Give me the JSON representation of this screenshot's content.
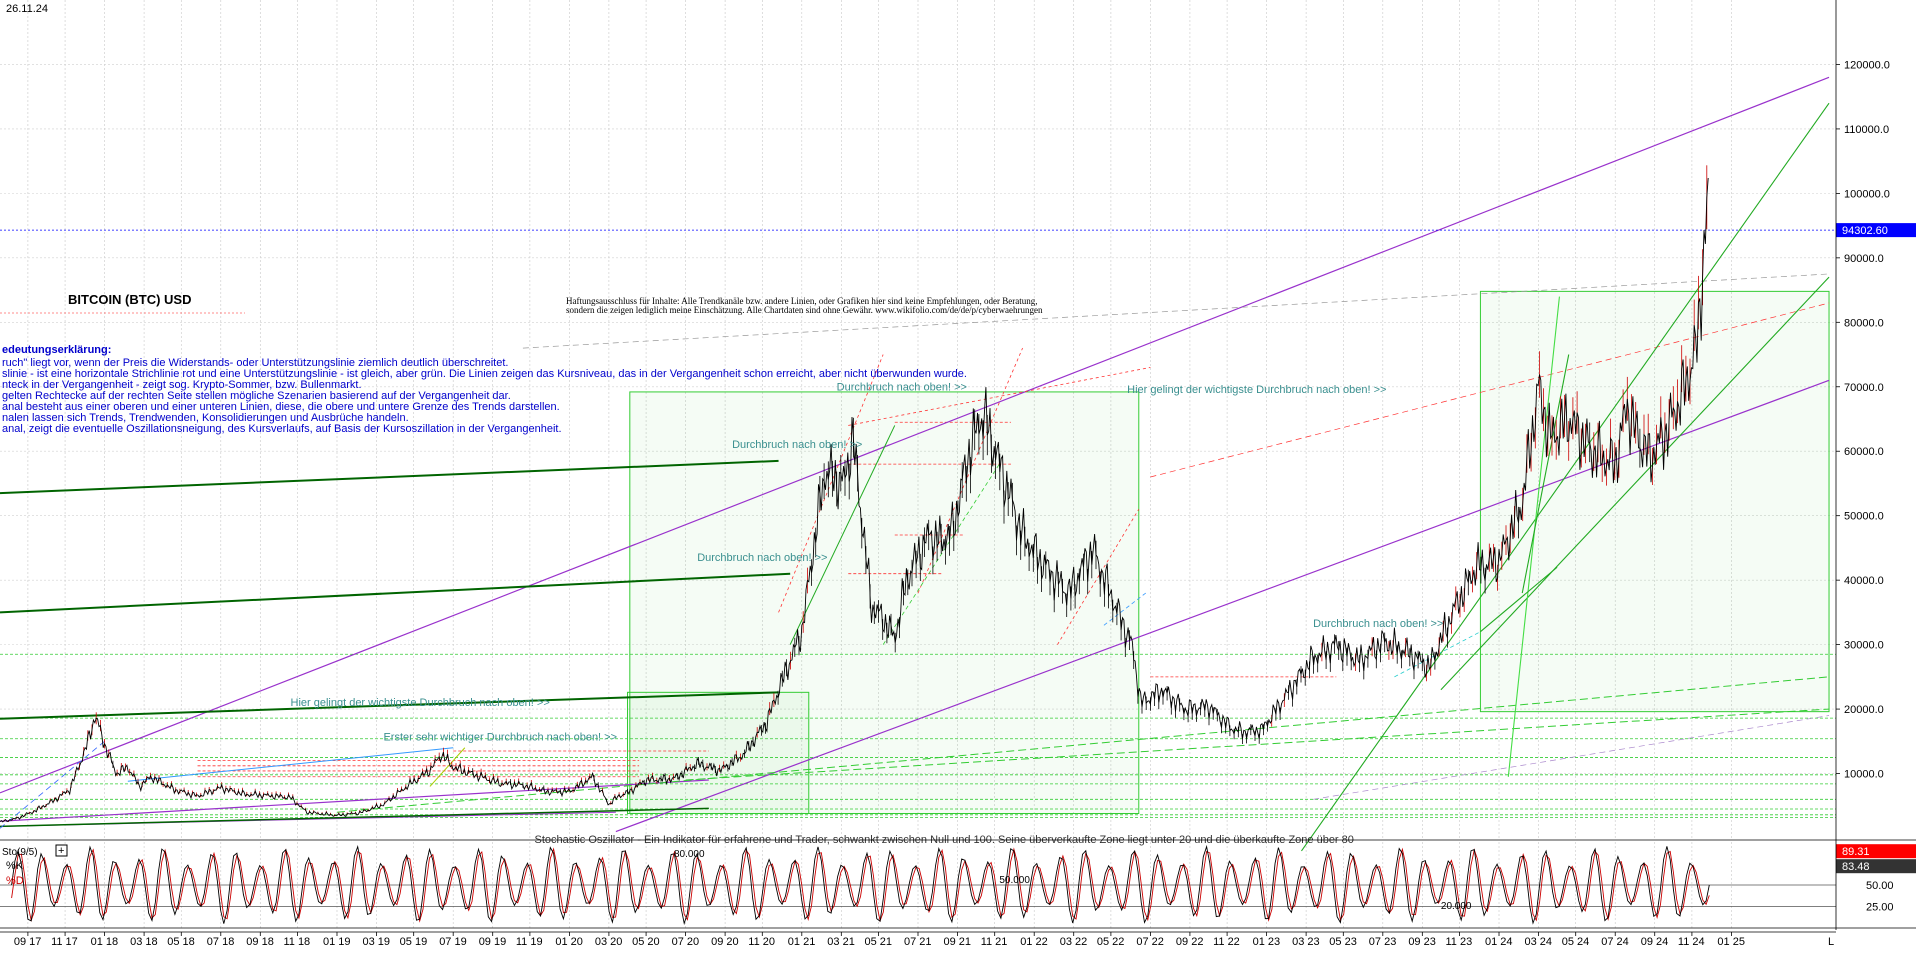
{
  "chart_data": {
    "type": "line",
    "date_label": "26.11.24",
    "title": "BITCOIN (BTC) USD",
    "disclaimer": [
      "Haftungsausschluss für Inhalte: Alle Trendkanäle bzw. andere Linien, oder Grafiken hier sind keine Empfehlungen, oder Beratung,",
      "sondern die zeigen lediglich meine  Einschätzung. Alle Chartdaten sind ohne Gewähr.  www.wikifolio.com/de/de/p/cyberwaehrungen"
    ],
    "legend_heading": "edeutungserklärung:",
    "legend_lines": [
      "ruch\" liegt vor, wenn der Preis die Widerstands- oder Unterstützungslinie ziemlich deutlich überschreitet.",
      "slinie - ist eine horizontale Strichlinie rot und eine Unterstützungslinie - ist gleich, aber grün. Die Linien zeigen das Kursniveau, das in der Vergangenheit schon erreicht, aber nicht überwunden wurde.",
      "nteck in der Vergangenheit - zeigt sog. Krypto-Sommer, bzw. Bullenmarkt.",
      "gelten Rechtecke auf der rechten Seite stellen mögliche Szenarien basierend auf der Vergangenheit dar.",
      "anal besteht aus einer oberen und einer unteren Linien, diese, die obere und untere Grenze des Trends darstellen.",
      "nalen lassen sich Trends, Trendwenden, Konsolidierungen und Ausbrüche handeln.",
      "anal, zeigt die eventuelle Oszillationsneigung, des Kursverlaufs, auf Basis der Kursoszillation in der Vergangenheit."
    ],
    "annotations": [
      {
        "text": "Durchbruch nach oben! >>",
        "x_date": 2021.15,
        "y_value": 69400
      },
      {
        "text": "Durchbruch nach oben! >>",
        "x_date": 2020.7,
        "y_value": 60500
      },
      {
        "text": "Durchbruch nach oben! >>",
        "x_date": 2020.55,
        "y_value": 43000
      },
      {
        "text": "Hier gelingt der wichtigste Durchbruch nach oben! >>",
        "x_date": 2022.4,
        "y_value": 69000
      },
      {
        "text": "Durchbruch nach oben! >>",
        "x_date": 2023.2,
        "y_value": 32700
      },
      {
        "text": "Hier gelingt der wichtigste Durchbruch nach oben! >>",
        "x_date": 2018.8,
        "y_value": 20500
      },
      {
        "text": "Erster sehr wichtiger Durchbruch nach oben! >>",
        "x_date": 2019.2,
        "y_value": 15100
      },
      {
        "text": "Stochastic Oszillator - Ein Indikator für erfahrene und Trader, schwankt zwischen Null und 100. Seine überverkaufte Zone liegt unter 20 und die überkaufte Zone über 80",
        "x_date": 2019.85,
        "y_value": -200
      }
    ],
    "y_axis": {
      "range": [
        0,
        130000
      ],
      "ticks": [
        10000,
        20000,
        30000,
        40000,
        50000,
        60000,
        70000,
        80000,
        90000,
        100000,
        110000,
        120000
      ],
      "tick_labels": [
        "10000.0",
        "20000.0",
        "30000.0",
        "40000.0",
        "50000.0",
        "60000.0",
        "70000.0",
        "80000.0",
        "90000.0",
        "100000.0",
        "110000.0",
        "120000.0"
      ]
    },
    "current_price": {
      "value": 94302.6,
      "label": "94302.60"
    },
    "x_axis": {
      "range": [
        2017.55,
        2025.45
      ],
      "tick_labels": [
        "09 17",
        "11 17",
        "01 18",
        "03 18",
        "05 18",
        "07 18",
        "09 18",
        "11 18",
        "01 19",
        "03 19",
        "05 19",
        "07 19",
        "09 19",
        "11 19",
        "01 20",
        "03 20",
        "05 20",
        "07 20",
        "09 20",
        "11 20",
        "01 21",
        "03 21",
        "05 21",
        "07 21",
        "09 21",
        "11 21",
        "01 22",
        "03 22",
        "05 22",
        "07 22",
        "09 22",
        "11 22",
        "01 23",
        "03 23",
        "05 23",
        "07 23",
        "09 23",
        "11 23",
        "01 24",
        "03 24",
        "05 24",
        "07 24",
        "09 24",
        "11 24",
        "01 25"
      ],
      "tick_dates": [
        2017.67,
        2017.83,
        2018.0,
        2018.17,
        2018.33,
        2018.5,
        2018.67,
        2018.83,
        2019.0,
        2019.17,
        2019.33,
        2019.5,
        2019.67,
        2019.83,
        2020.0,
        2020.17,
        2020.33,
        2020.5,
        2020.67,
        2020.83,
        2021.0,
        2021.17,
        2021.33,
        2021.5,
        2021.67,
        2021.83,
        2022.0,
        2022.17,
        2022.33,
        2022.5,
        2022.67,
        2022.83,
        2023.0,
        2023.17,
        2023.33,
        2023.5,
        2023.67,
        2023.83,
        2024.0,
        2024.17,
        2024.33,
        2024.5,
        2024.67,
        2024.83,
        2025.0
      ],
      "end_marker": "L"
    },
    "price_series": {
      "name": "BTC USD",
      "x": [
        2017.55,
        2017.62,
        2017.7,
        2017.78,
        2017.85,
        2017.92,
        2017.96,
        2018.0,
        2018.05,
        2018.1,
        2018.15,
        2018.2,
        2018.3,
        2018.4,
        2018.5,
        2018.6,
        2018.7,
        2018.8,
        2018.87,
        2018.92,
        2019.0,
        2019.1,
        2019.2,
        2019.3,
        2019.4,
        2019.45,
        2019.5,
        2019.55,
        2019.62,
        2019.7,
        2019.8,
        2019.9,
        2020.0,
        2020.1,
        2020.17,
        2020.21,
        2020.25,
        2020.33,
        2020.45,
        2020.55,
        2020.65,
        2020.75,
        2020.85,
        2020.9,
        2021.0,
        2021.05,
        2021.1,
        2021.18,
        2021.22,
        2021.3,
        2021.35,
        2021.4,
        2021.45,
        2021.5,
        2021.55,
        2021.6,
        2021.65,
        2021.72,
        2021.78,
        2021.86,
        2021.95,
        2022.05,
        2022.15,
        2022.25,
        2022.35,
        2022.42,
        2022.46,
        2022.55,
        2022.65,
        2022.75,
        2022.85,
        2022.9,
        2022.98,
        2023.1,
        2023.2,
        2023.3,
        2023.4,
        2023.5,
        2023.6,
        2023.7,
        2023.8,
        2023.9,
        2024.0,
        2024.1,
        2024.17,
        2024.22,
        2024.3,
        2024.4,
        2024.5,
        2024.55,
        2024.6,
        2024.65,
        2024.72,
        2024.8,
        2024.85,
        2024.88,
        2024.9,
        2024.905
      ],
      "values": [
        2500,
        3000,
        4200,
        5800,
        7500,
        14000,
        19000,
        14500,
        10000,
        11000,
        8000,
        9500,
        7500,
        6500,
        7800,
        6800,
        6600,
        6300,
        4000,
        3800,
        3500,
        3900,
        5200,
        8000,
        10500,
        13000,
        11000,
        10300,
        9500,
        8500,
        8200,
        7200,
        7200,
        9500,
        5200,
        6500,
        7000,
        9000,
        9200,
        11500,
        10500,
        13000,
        18000,
        23000,
        32000,
        45000,
        57000,
        55000,
        62000,
        36000,
        34000,
        31000,
        40000,
        44000,
        47000,
        46000,
        48000,
        60000,
        66000,
        57000,
        47000,
        42000,
        38000,
        45000,
        36000,
        30000,
        21000,
        23000,
        20000,
        20500,
        17000,
        16500,
        16800,
        23000,
        28000,
        30000,
        27500,
        30500,
        29000,
        26500,
        35000,
        42000,
        43000,
        52000,
        70000,
        62000,
        65000,
        60000,
        58000,
        67000,
        62000,
        59000,
        63000,
        70000,
        76000,
        90000,
        99000,
        94300
      ]
    },
    "stochastic": {
      "label": "Sto(9/5)",
      "k_label": "%K",
      "d_label": "%D",
      "k_value": 89.31,
      "k_value_label": "89.31",
      "d_value": 83.48,
      "d_value_label": "83.48",
      "range": [
        0,
        100
      ],
      "levels": [
        50,
        25
      ],
      "level_labels": [
        "50.00",
        "25.00"
      ],
      "overlay_labels": [
        "80.000",
        "50.000",
        "20.000"
      ],
      "cycles": 70
    },
    "colors": {
      "price": "#000000",
      "up_candle": "#cc0000",
      "channel_purple": "#9932cc",
      "support_green": "#33cc33",
      "dark_green": "#006400",
      "resistance_red": "#ff3333",
      "annotation": "#3a8f8f",
      "legend_text": "#0000cc",
      "price_marker": "#0000ff",
      "stoch_k_marker": "#ff0000",
      "stoch_d_marker": "#333333"
    }
  }
}
